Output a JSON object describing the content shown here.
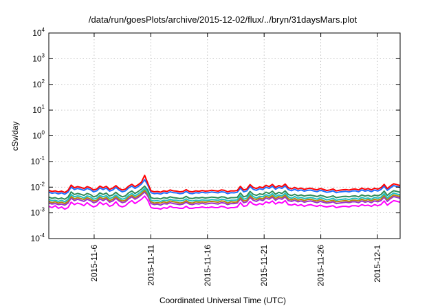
{
  "chart_data": {
    "type": "line",
    "title": "/data/run/goesPlots/archive/2015-12-02/flux/../bryn/31daysMars.plot",
    "xlabel": "Coordinated Universal Time (UTC)",
    "ylabel": "cSv/day",
    "y_scale": "log",
    "ylim": [
      0.0001,
      10000
    ],
    "y_ticks": [
      {
        "value": 0.0001,
        "base": "10",
        "exp": "-4"
      },
      {
        "value": 0.001,
        "base": "10",
        "exp": "-3"
      },
      {
        "value": 0.01,
        "base": "10",
        "exp": "-2"
      },
      {
        "value": 0.1,
        "base": "10",
        "exp": "-1"
      },
      {
        "value": 1,
        "base": "10",
        "exp": "0"
      },
      {
        "value": 10,
        "base": "10",
        "exp": "1"
      },
      {
        "value": 100,
        "base": "10",
        "exp": "2"
      },
      {
        "value": 1000,
        "base": "10",
        "exp": "3"
      },
      {
        "value": 10000,
        "base": "10",
        "exp": "4"
      }
    ],
    "xlim": [
      "2015-11-02",
      "2015-12-03"
    ],
    "x_ticks": [
      "2015-11-6",
      "2015-11-11",
      "2015-11-16",
      "2015-11-21",
      "2015-11-26",
      "2015-12-1"
    ],
    "x_tick_dates": [
      "2015-11-06",
      "2015-11-11",
      "2015-11-16",
      "2015-11-21",
      "2015-11-26",
      "2015-12-01"
    ],
    "grid": true,
    "series": [
      {
        "color": "#ff0000",
        "values": [
          0.0075,
          0.0068,
          0.0072,
          0.0065,
          0.007,
          0.0062,
          0.0075,
          0.012,
          0.0095,
          0.0105,
          0.0098,
          0.0088,
          0.0105,
          0.0095,
          0.0078,
          0.0085,
          0.011,
          0.0095,
          0.0108,
          0.0082,
          0.0092,
          0.0115,
          0.009,
          0.0078,
          0.0085,
          0.011,
          0.013,
          0.0105,
          0.0125,
          0.0155,
          0.029,
          0.0142,
          0.0072,
          0.0066,
          0.0068,
          0.0064,
          0.0072,
          0.0068,
          0.0078,
          0.0072,
          0.007,
          0.0066,
          0.0068,
          0.008,
          0.0068,
          0.0066,
          0.0072,
          0.0069,
          0.0074,
          0.007,
          0.0072,
          0.0076,
          0.0073,
          0.007,
          0.0078,
          0.0075,
          0.0066,
          0.0072,
          0.0071,
          0.0074,
          0.0108,
          0.0078,
          0.0085,
          0.0126,
          0.0098,
          0.0088,
          0.0102,
          0.0095,
          0.0118,
          0.0105,
          0.0128,
          0.0098,
          0.0115,
          0.0105,
          0.0132,
          0.0095,
          0.0086,
          0.0098,
          0.0085,
          0.0092,
          0.0082,
          0.0088,
          0.0091,
          0.0084,
          0.0079,
          0.0089,
          0.0082,
          0.0074,
          0.0078,
          0.0085,
          0.0072,
          0.0076,
          0.0079,
          0.0081,
          0.0077,
          0.0083,
          0.0085,
          0.0078,
          0.0092,
          0.0082,
          0.0088,
          0.0079,
          0.0091,
          0.0084,
          0.0095,
          0.0128,
          0.0088,
          0.0112,
          0.0135,
          0.0125,
          0.0115
        ]
      },
      {
        "color": "#1f6fff",
        "values": [
          0.0064,
          0.0058,
          0.0061,
          0.0055,
          0.006,
          0.0053,
          0.0064,
          0.0101,
          0.0081,
          0.0089,
          0.0083,
          0.0075,
          0.0089,
          0.0081,
          0.0066,
          0.0072,
          0.0094,
          0.0081,
          0.0092,
          0.007,
          0.0078,
          0.0098,
          0.0077,
          0.0066,
          0.0072,
          0.0093,
          0.011,
          0.0089,
          0.0106,
          0.0132,
          0.0196,
          0.0121,
          0.0061,
          0.0056,
          0.0058,
          0.0054,
          0.0061,
          0.0058,
          0.0066,
          0.0061,
          0.006,
          0.0056,
          0.0058,
          0.0068,
          0.0058,
          0.0056,
          0.0061,
          0.0059,
          0.0063,
          0.006,
          0.0061,
          0.0065,
          0.0062,
          0.006,
          0.0066,
          0.0064,
          0.0056,
          0.0061,
          0.006,
          0.0063,
          0.0092,
          0.0066,
          0.0072,
          0.0107,
          0.0083,
          0.0075,
          0.0087,
          0.0081,
          0.01,
          0.0089,
          0.0109,
          0.0083,
          0.0098,
          0.0089,
          0.0112,
          0.0081,
          0.0073,
          0.0083,
          0.0072,
          0.0078,
          0.007,
          0.0075,
          0.0077,
          0.0071,
          0.0067,
          0.0076,
          0.007,
          0.0063,
          0.0066,
          0.0072,
          0.0061,
          0.0065,
          0.0067,
          0.0069,
          0.0065,
          0.0071,
          0.0072,
          0.0066,
          0.0078,
          0.007,
          0.0075,
          0.0067,
          0.0077,
          0.0071,
          0.0081,
          0.0109,
          0.0075,
          0.0095,
          0.0115,
          0.0106,
          0.0098
        ]
      },
      {
        "color": "#2e8b57",
        "values": [
          0.0041,
          0.0037,
          0.0039,
          0.0035,
          0.0038,
          0.0034,
          0.0041,
          0.0065,
          0.0052,
          0.0057,
          0.0053,
          0.0048,
          0.0057,
          0.0052,
          0.0042,
          0.0046,
          0.006,
          0.0052,
          0.0059,
          0.0045,
          0.005,
          0.0063,
          0.0049,
          0.0042,
          0.0046,
          0.006,
          0.0071,
          0.0057,
          0.0068,
          0.0084,
          0.011,
          0.0077,
          0.0039,
          0.0036,
          0.0037,
          0.0035,
          0.0039,
          0.0037,
          0.0042,
          0.0039,
          0.0038,
          0.0036,
          0.0037,
          0.0044,
          0.0037,
          0.0036,
          0.0039,
          0.0038,
          0.004,
          0.0038,
          0.0039,
          0.0041,
          0.004,
          0.0038,
          0.0042,
          0.0041,
          0.0036,
          0.0039,
          0.0039,
          0.004,
          0.0059,
          0.0042,
          0.0046,
          0.0068,
          0.0053,
          0.0048,
          0.0055,
          0.0052,
          0.0064,
          0.0057,
          0.007,
          0.0053,
          0.0063,
          0.0057,
          0.0072,
          0.0052,
          0.0047,
          0.0053,
          0.0046,
          0.005,
          0.0045,
          0.0048,
          0.0049,
          0.0046,
          0.0043,
          0.0048,
          0.0045,
          0.004,
          0.0042,
          0.0046,
          0.0039,
          0.0041,
          0.0043,
          0.0044,
          0.0042,
          0.0045,
          0.0046,
          0.0042,
          0.005,
          0.0045,
          0.0048,
          0.0043,
          0.0049,
          0.0046,
          0.0052,
          0.007,
          0.0048,
          0.0061,
          0.0073,
          0.0068,
          0.0063
        ]
      },
      {
        "color": "#20c0c0",
        "values": [
          0.0033,
          0.003,
          0.0031,
          0.0028,
          0.0031,
          0.0027,
          0.0033,
          0.0052,
          0.0042,
          0.0046,
          0.0043,
          0.0038,
          0.0046,
          0.0042,
          0.0034,
          0.0037,
          0.0048,
          0.0042,
          0.0047,
          0.0036,
          0.004,
          0.005,
          0.0039,
          0.0034,
          0.0037,
          0.0048,
          0.0057,
          0.0046,
          0.0055,
          0.0068,
          0.0089,
          0.0062,
          0.0031,
          0.0029,
          0.003,
          0.0028,
          0.0031,
          0.003,
          0.0034,
          0.0031,
          0.0031,
          0.0029,
          0.003,
          0.0035,
          0.003,
          0.0029,
          0.0031,
          0.003,
          0.0032,
          0.0031,
          0.0031,
          0.0033,
          0.0032,
          0.0031,
          0.0034,
          0.0033,
          0.0029,
          0.0031,
          0.0031,
          0.0032,
          0.0047,
          0.0034,
          0.0037,
          0.0055,
          0.0043,
          0.0038,
          0.0044,
          0.0042,
          0.0051,
          0.0046,
          0.0056,
          0.0043,
          0.005,
          0.0046,
          0.0058,
          0.0042,
          0.0037,
          0.0043,
          0.0037,
          0.004,
          0.0036,
          0.0038,
          0.004,
          0.0037,
          0.0034,
          0.0039,
          0.0036,
          0.0032,
          0.0034,
          0.0037,
          0.0031,
          0.0033,
          0.0034,
          0.0035,
          0.0033,
          0.0036,
          0.0037,
          0.0034,
          0.004,
          0.0036,
          0.0038,
          0.0034,
          0.004,
          0.0037,
          0.0041,
          0.0056,
          0.0038,
          0.0049,
          0.0059,
          0.0054,
          0.005
        ]
      },
      {
        "color": "#b8860b",
        "values": [
          0.0028,
          0.0025,
          0.0027,
          0.0024,
          0.0026,
          0.0023,
          0.0028,
          0.0044,
          0.0035,
          0.0039,
          0.0036,
          0.0033,
          0.0039,
          0.0035,
          0.0029,
          0.0031,
          0.0041,
          0.0035,
          0.004,
          0.003,
          0.0034,
          0.0043,
          0.0033,
          0.0029,
          0.0031,
          0.0041,
          0.0048,
          0.0039,
          0.0046,
          0.0057,
          0.0075,
          0.0053,
          0.0027,
          0.0024,
          0.0025,
          0.0024,
          0.0027,
          0.0025,
          0.0029,
          0.0027,
          0.0026,
          0.0024,
          0.0025,
          0.003,
          0.0025,
          0.0024,
          0.0027,
          0.0026,
          0.0027,
          0.0026,
          0.0027,
          0.0028,
          0.0027,
          0.0026,
          0.0029,
          0.0028,
          0.0024,
          0.0027,
          0.0026,
          0.0027,
          0.004,
          0.0029,
          0.0031,
          0.0047,
          0.0036,
          0.0033,
          0.0038,
          0.0035,
          0.0044,
          0.0039,
          0.0047,
          0.0036,
          0.0043,
          0.0039,
          0.0049,
          0.0035,
          0.0032,
          0.0036,
          0.0031,
          0.0034,
          0.003,
          0.0033,
          0.0034,
          0.0031,
          0.0029,
          0.0033,
          0.003,
          0.0027,
          0.0029,
          0.0031,
          0.0027,
          0.0028,
          0.0029,
          0.003,
          0.0028,
          0.0031,
          0.0031,
          0.0029,
          0.0034,
          0.003,
          0.0033,
          0.0029,
          0.0034,
          0.0031,
          0.0035,
          0.0047,
          0.0033,
          0.0041,
          0.005,
          0.0046,
          0.0043
        ]
      },
      {
        "color": "#9932cc",
        "values": [
          0.0024,
          0.0022,
          0.0023,
          0.0021,
          0.0022,
          0.002,
          0.0024,
          0.0038,
          0.003,
          0.0034,
          0.0031,
          0.0028,
          0.0034,
          0.003,
          0.0025,
          0.0027,
          0.0035,
          0.003,
          0.0035,
          0.0026,
          0.0029,
          0.0037,
          0.0029,
          0.0025,
          0.0027,
          0.0035,
          0.0042,
          0.0034,
          0.004,
          0.005,
          0.0065,
          0.0045,
          0.0023,
          0.0021,
          0.0022,
          0.002,
          0.0023,
          0.0022,
          0.0025,
          0.0023,
          0.0022,
          0.0021,
          0.0022,
          0.0026,
          0.0022,
          0.0021,
          0.0023,
          0.0022,
          0.0024,
          0.0022,
          0.0023,
          0.0024,
          0.0023,
          0.0022,
          0.0025,
          0.0024,
          0.0021,
          0.0023,
          0.0023,
          0.0024,
          0.0035,
          0.0025,
          0.0027,
          0.004,
          0.0031,
          0.0028,
          0.0033,
          0.003,
          0.0038,
          0.0034,
          0.0041,
          0.0031,
          0.0037,
          0.0034,
          0.0042,
          0.003,
          0.0028,
          0.0031,
          0.0027,
          0.0029,
          0.0026,
          0.0028,
          0.0029,
          0.0027,
          0.0025,
          0.0028,
          0.0026,
          0.0024,
          0.0025,
          0.0027,
          0.0023,
          0.0024,
          0.0025,
          0.0026,
          0.0025,
          0.0027,
          0.0027,
          0.0025,
          0.0029,
          0.0026,
          0.0028,
          0.0025,
          0.0029,
          0.0027,
          0.003,
          0.0041,
          0.0028,
          0.0036,
          0.0043,
          0.004,
          0.0037
        ]
      },
      {
        "color": "#ff00ff",
        "values": [
          0.0018,
          0.0016,
          0.0019,
          0.0015,
          0.0017,
          0.0014,
          0.0016,
          0.0026,
          0.0021,
          0.0024,
          0.0022,
          0.0019,
          0.0025,
          0.002,
          0.0017,
          0.0019,
          0.0026,
          0.0021,
          0.0024,
          0.0018,
          0.002,
          0.0027,
          0.0019,
          0.0017,
          0.0019,
          0.0025,
          0.003,
          0.0023,
          0.0028,
          0.0034,
          0.0045,
          0.0031,
          0.0016,
          0.0015,
          0.0015,
          0.0014,
          0.0016,
          0.0015,
          0.0018,
          0.0016,
          0.0016,
          0.0015,
          0.0015,
          0.0018,
          0.0015,
          0.0015,
          0.0016,
          0.0016,
          0.0017,
          0.0016,
          0.0016,
          0.0017,
          0.0016,
          0.0016,
          0.0018,
          0.0017,
          0.0015,
          0.0016,
          0.0016,
          0.0017,
          0.0025,
          0.0018,
          0.0019,
          0.0028,
          0.0022,
          0.002,
          0.0023,
          0.0021,
          0.0027,
          0.0024,
          0.0029,
          0.0022,
          0.0026,
          0.0024,
          0.003,
          0.0021,
          0.002,
          0.0022,
          0.0019,
          0.0021,
          0.0018,
          0.002,
          0.0021,
          0.0019,
          0.0018,
          0.002,
          0.0018,
          0.0017,
          0.0018,
          0.0019,
          0.0016,
          0.0017,
          0.0018,
          0.0018,
          0.0017,
          0.0019,
          0.0019,
          0.0018,
          0.0021,
          0.0019,
          0.002,
          0.0018,
          0.0021,
          0.0019,
          0.0021,
          0.0029,
          0.002,
          0.0025,
          0.003,
          0.0028,
          0.0026
        ]
      }
    ]
  }
}
